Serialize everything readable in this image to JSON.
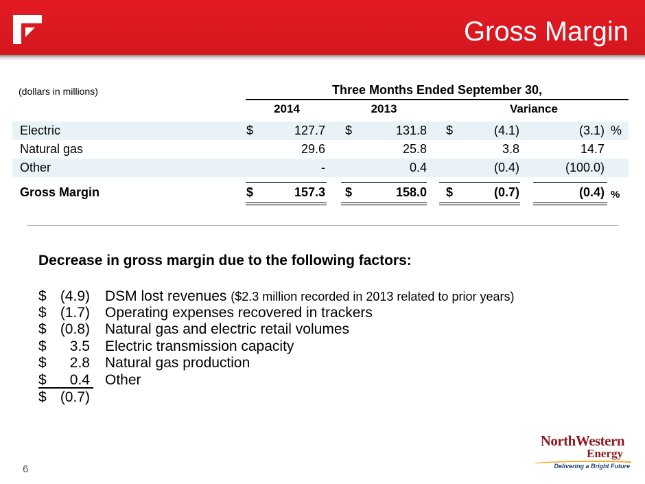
{
  "header": {
    "title": "Gross Margin"
  },
  "table": {
    "units_note": "(dollars in millions)",
    "period_header": "Three Months Ended September 30,",
    "columns": [
      "2014",
      "2013",
      "Variance"
    ],
    "rows": [
      {
        "label": "Electric",
        "y2014_cur": "$",
        "y2014": "127.7",
        "y2013_cur": "$",
        "y2013": "131.8",
        "var_cur": "$",
        "var": "(4.1)",
        "var_pct": "(3.1)",
        "pct_sign": "%"
      },
      {
        "label": "Natural gas",
        "y2014_cur": "",
        "y2014": "29.6",
        "y2013_cur": "",
        "y2013": "25.8",
        "var_cur": "",
        "var": "3.8",
        "var_pct": "14.7",
        "pct_sign": ""
      },
      {
        "label": "Other",
        "y2014_cur": "",
        "y2014": "-",
        "y2013_cur": "",
        "y2013": "0.4",
        "var_cur": "",
        "var": "(0.4)",
        "var_pct": "(100.0)",
        "pct_sign": ""
      },
      {
        "label": "Gross Margin",
        "y2014_cur": "$",
        "y2014": "157.3",
        "y2013_cur": "$",
        "y2013": "158.0",
        "var_cur": "$",
        "var": "(0.7)",
        "var_pct": "(0.4)",
        "pct_sign": "%"
      }
    ]
  },
  "factors": {
    "heading": "Decrease in gross margin due to the following factors:",
    "items": [
      {
        "currency": "$",
        "amount": "(4.9)",
        "description": "DSM lost revenues",
        "detail": "($2.3 million recorded in 2013 related to prior years)"
      },
      {
        "currency": "$",
        "amount": "(1.7)",
        "description": "Operating expenses recovered in trackers",
        "detail": ""
      },
      {
        "currency": "$",
        "amount": "(0.8)",
        "description": "Natural gas and electric retail volumes",
        "detail": ""
      },
      {
        "currency": "$",
        "amount": "3.5",
        "description": "Electric transmission capacity",
        "detail": ""
      },
      {
        "currency": "$",
        "amount": "2.8",
        "description": "Natural gas production",
        "detail": ""
      },
      {
        "currency": "$",
        "amount": "0.4",
        "description": "Other",
        "detail": ""
      },
      {
        "currency": "$",
        "amount": "(0.7)",
        "description": "",
        "detail": ""
      }
    ]
  },
  "footer": {
    "page_number": "6",
    "brand_name": "NorthWestern",
    "brand_energy": "Energy",
    "brand_tagline": "Delivering a Bright Future"
  },
  "colors": {
    "header_red": "#e31b23",
    "row_shade": "#e8f2f7",
    "brand_red": "#8c1b21",
    "brand_blue": "#1d3f7a"
  }
}
